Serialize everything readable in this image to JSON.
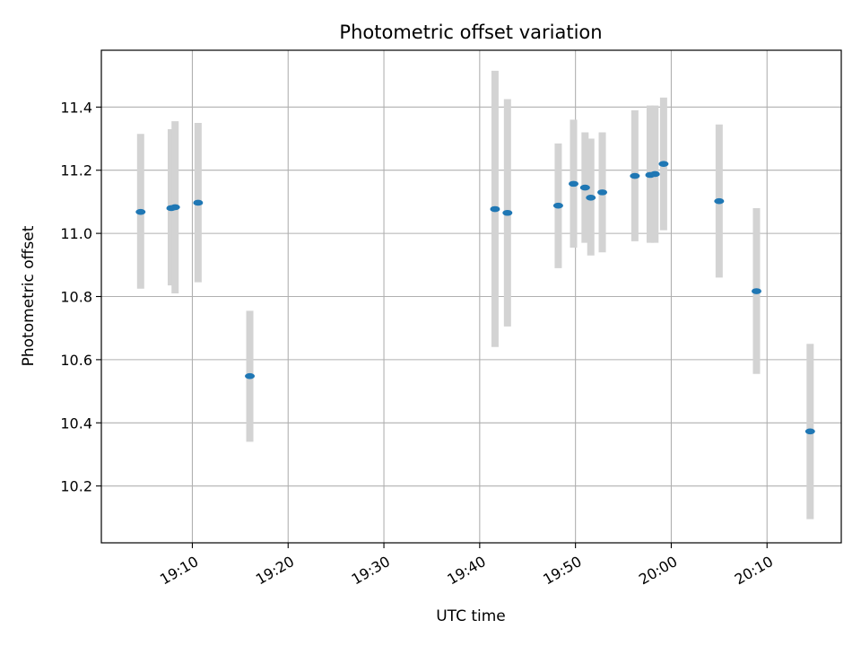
{
  "chart_data": {
    "type": "scatter",
    "title": "Photometric offset variation",
    "xlabel": "UTC time",
    "ylabel": "Photometric offset",
    "xlim": [
      "19:00:30",
      "20:17:45"
    ],
    "ylim": [
      10.02,
      11.58
    ],
    "x_ticks": [
      "19:10",
      "19:20",
      "19:30",
      "19:40",
      "19:50",
      "20:00",
      "20:10"
    ],
    "y_ticks": [
      10.2,
      10.4,
      10.6,
      10.8,
      11.0,
      11.2,
      11.4
    ],
    "y_tick_labels": [
      "10.2",
      "10.4",
      "10.6",
      "10.8",
      "11.0",
      "11.2",
      "11.4"
    ],
    "grid": true,
    "colors": {
      "point": "#1f77b4",
      "errorbar": "#d3d3d3",
      "grid": "#b0b0b0"
    },
    "series": [
      {
        "points": [
          {
            "x": "19:04:36",
            "y": 11.068,
            "ylow": 10.825,
            "yhigh": 11.315
          },
          {
            "x": "19:07:48",
            "y": 11.08,
            "ylow": 10.835,
            "yhigh": 11.33
          },
          {
            "x": "19:08:12",
            "y": 11.083,
            "ylow": 10.81,
            "yhigh": 11.355
          },
          {
            "x": "19:10:36",
            "y": 11.097,
            "ylow": 10.845,
            "yhigh": 11.35
          },
          {
            "x": "19:16:00",
            "y": 10.548,
            "ylow": 10.34,
            "yhigh": 10.755
          },
          {
            "x": "19:41:36",
            "y": 11.077,
            "ylow": 10.64,
            "yhigh": 11.515
          },
          {
            "x": "19:42:54",
            "y": 11.065,
            "ylow": 10.705,
            "yhigh": 11.425
          },
          {
            "x": "19:48:12",
            "y": 11.088,
            "ylow": 10.89,
            "yhigh": 11.285
          },
          {
            "x": "19:49:48",
            "y": 11.157,
            "ylow": 10.955,
            "yhigh": 11.36
          },
          {
            "x": "19:51:00",
            "y": 11.145,
            "ylow": 10.97,
            "yhigh": 11.32
          },
          {
            "x": "19:51:36",
            "y": 11.113,
            "ylow": 10.93,
            "yhigh": 11.3
          },
          {
            "x": "19:52:48",
            "y": 11.13,
            "ylow": 10.94,
            "yhigh": 11.32
          },
          {
            "x": "19:56:12",
            "y": 11.182,
            "ylow": 10.975,
            "yhigh": 11.39
          },
          {
            "x": "19:57:48",
            "y": 11.185,
            "ylow": 10.97,
            "yhigh": 11.405
          },
          {
            "x": "19:58:18",
            "y": 11.188,
            "ylow": 10.97,
            "yhigh": 11.405
          },
          {
            "x": "19:59:12",
            "y": 11.22,
            "ylow": 11.01,
            "yhigh": 11.43
          },
          {
            "x": "20:05:00",
            "y": 11.102,
            "ylow": 10.86,
            "yhigh": 11.345
          },
          {
            "x": "20:08:54",
            "y": 10.817,
            "ylow": 10.555,
            "yhigh": 11.08
          },
          {
            "x": "20:14:30",
            "y": 10.373,
            "ylow": 10.095,
            "yhigh": 10.65
          }
        ]
      }
    ]
  }
}
